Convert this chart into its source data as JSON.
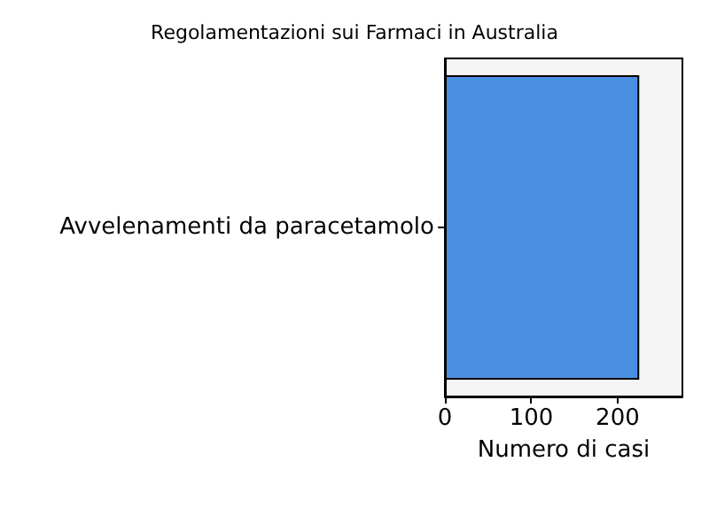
{
  "chart_data": {
    "type": "bar",
    "orientation": "horizontal",
    "title": "Regolamentazioni sui Farmaci in Australia",
    "xlabel": "Numero di casi",
    "categories": [
      "Avvelenamenti da paracetamolo"
    ],
    "values": [
      225
    ],
    "color": "#4a90e2",
    "xlim": [
      0,
      275
    ],
    "xticks": [
      0,
      100,
      200
    ],
    "grid": false
  }
}
